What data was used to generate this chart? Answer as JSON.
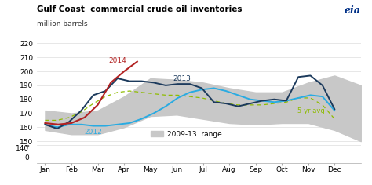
{
  "title": "Gulf Coast  commercial crude oil inventories",
  "subtitle": "million barrels",
  "background_color": "#ffffff",
  "grid_color": "#dddddd",
  "range_color": "#c8c8c8",
  "line_2014_color": "#b22222",
  "line_2013_color": "#1c3a5c",
  "line_2012_color": "#29abe2",
  "line_5yr_color": "#8fbc00",
  "xlabel_months": [
    "Jan",
    "Feb",
    "Mar",
    "Apr",
    "May",
    "Jun",
    "Jul",
    "Aug",
    "Sep",
    "Oct",
    "Nov",
    "Dec"
  ],
  "range_upper": [
    172,
    170,
    172,
    182,
    195,
    194,
    192,
    188,
    185,
    185,
    192,
    197,
    190
  ],
  "range_lower": [
    158,
    155,
    155,
    160,
    168,
    169,
    166,
    163,
    162,
    163,
    163,
    158,
    150
  ],
  "x_range": [
    0,
    1,
    2,
    3,
    4,
    5,
    6,
    7,
    8,
    9,
    10,
    11,
    12
  ],
  "x_full": [
    0.0,
    0.458,
    0.917,
    1.375,
    1.833,
    2.292,
    2.75,
    3.208,
    3.667,
    4.125,
    4.583,
    5.042,
    5.5,
    5.958,
    6.417,
    6.875,
    7.333,
    7.792,
    8.25,
    8.708,
    9.167,
    9.625,
    10.083,
    10.542,
    11.0
  ],
  "line_2013": [
    162,
    159,
    164,
    172,
    183,
    186,
    195,
    193,
    193,
    192,
    190,
    191,
    191,
    188,
    178,
    177,
    175,
    177,
    179,
    180,
    179,
    196,
    197,
    190,
    173
  ],
  "line_2012": [
    162,
    160,
    162,
    162,
    161,
    161,
    162,
    163,
    166,
    170,
    175,
    181,
    185,
    187,
    188,
    186,
    183,
    180,
    179,
    178,
    179,
    181,
    183,
    182,
    172
  ],
  "line_5yr": [
    165,
    165,
    167,
    171,
    177,
    182,
    185,
    186,
    185,
    184,
    183,
    183,
    182,
    181,
    179,
    177,
    176,
    176,
    176,
    177,
    178,
    181,
    181,
    176,
    166
  ],
  "x_2014": [
    0.0,
    0.5,
    1.0,
    1.5,
    2.0,
    2.5,
    3.0,
    3.5
  ],
  "line_2014": [
    163,
    162,
    163,
    167,
    176,
    192,
    200,
    207
  ],
  "legend_range_label": "2009-13  range",
  "label_2013": "2013",
  "label_2012": "2012",
  "label_2014": "2014",
  "label_5yr": "5-yr avg",
  "yticks_main": [
    150,
    160,
    170,
    180,
    190,
    200,
    210,
    220
  ],
  "yticks_break": [
    140
  ],
  "ytick_zero": [
    0
  ],
  "ylim_main": [
    148,
    222
  ],
  "eia_color": "#003087"
}
